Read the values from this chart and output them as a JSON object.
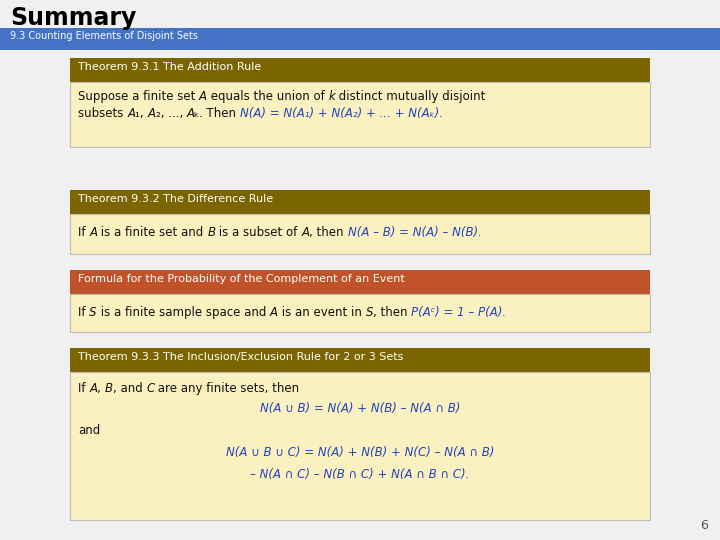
{
  "title": "Summary",
  "subtitle": "9.3 Counting Elements of Disjoint Sets",
  "bg_color": "#f0f0f0",
  "title_color": "#000000",
  "subtitle_bg": "#4472c4",
  "subtitle_fg": "#ffffff",
  "theorem_header_bg": "#7a6500",
  "theorem_header_fg": "#ffffff",
  "formula_header_bg": "#c0522a",
  "formula_header_fg": "#ffffff",
  "content_bg": "#faf0c0",
  "content_border": "#bbbbbb",
  "blue_text": "#2244bb",
  "black_text": "#111111",
  "page_num": "6",
  "fig_w": 7.2,
  "fig_h": 5.4,
  "dpi": 100
}
